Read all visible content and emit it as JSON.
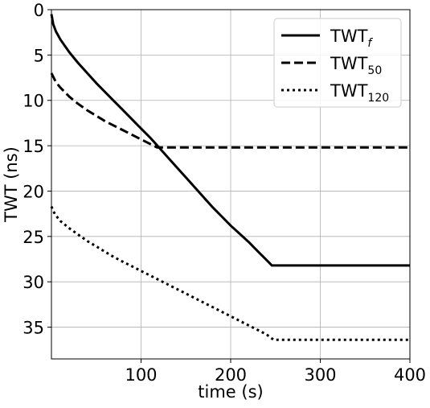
{
  "chart_data": {
    "type": "line",
    "xlabel": "time (s)",
    "ylabel": "TWT (ns)",
    "xlim": [
      0,
      400
    ],
    "ylim": [
      0,
      38.5
    ],
    "y_inverted": true,
    "grid": true,
    "legend_position": "top-right",
    "x_ticks": [
      "100",
      "200",
      "300",
      "400"
    ],
    "y_ticks": [
      "0",
      "5",
      "10",
      "15",
      "20",
      "25",
      "30",
      "35"
    ],
    "series": [
      {
        "name_base": "TWT",
        "name_sub": "f",
        "style": "solid",
        "color": "#000000",
        "x": [
          0,
          2,
          5,
          10,
          20,
          30,
          40,
          50,
          60,
          70,
          80,
          90,
          100,
          110,
          120,
          130,
          140,
          150,
          160,
          170,
          180,
          190,
          200,
          210,
          220,
          230,
          240,
          246,
          260,
          300,
          350,
          400
        ],
        "y": [
          0.5,
          1.6,
          2.4,
          3.3,
          4.7,
          5.9,
          7.0,
          8.1,
          9.1,
          10.1,
          11.1,
          12.1,
          13.1,
          14.1,
          15.2,
          16.3,
          17.4,
          18.5,
          19.6,
          20.7,
          21.8,
          22.8,
          23.8,
          24.7,
          25.6,
          26.6,
          27.6,
          28.2,
          28.2,
          28.2,
          28.2,
          28.2
        ]
      },
      {
        "name_base": "TWT",
        "name_sub": "50",
        "style": "dashed",
        "color": "#000000",
        "x": [
          0,
          5,
          10,
          20,
          30,
          40,
          50,
          60,
          70,
          80,
          90,
          100,
          110,
          118,
          150,
          200,
          250,
          300,
          350,
          400
        ],
        "y": [
          7.0,
          8.0,
          8.6,
          9.6,
          10.4,
          11.1,
          11.7,
          12.3,
          12.8,
          13.3,
          13.8,
          14.3,
          14.8,
          15.2,
          15.2,
          15.2,
          15.2,
          15.2,
          15.2,
          15.2
        ]
      },
      {
        "name_base": "TWT",
        "name_sub": "120",
        "style": "dotted",
        "color": "#000000",
        "x": [
          0,
          2,
          5,
          10,
          20,
          30,
          40,
          50,
          60,
          70,
          80,
          90,
          100,
          110,
          120,
          130,
          140,
          150,
          160,
          170,
          180,
          190,
          200,
          210,
          220,
          230,
          240,
          248,
          300,
          350,
          400
        ],
        "y": [
          21.7,
          22.2,
          22.7,
          23.3,
          24.1,
          24.8,
          25.5,
          26.1,
          26.7,
          27.3,
          27.8,
          28.3,
          28.8,
          29.3,
          29.8,
          30.3,
          30.8,
          31.3,
          31.8,
          32.3,
          32.8,
          33.3,
          33.8,
          34.3,
          34.8,
          35.3,
          35.8,
          36.4,
          36.4,
          36.4,
          36.4
        ]
      }
    ]
  }
}
